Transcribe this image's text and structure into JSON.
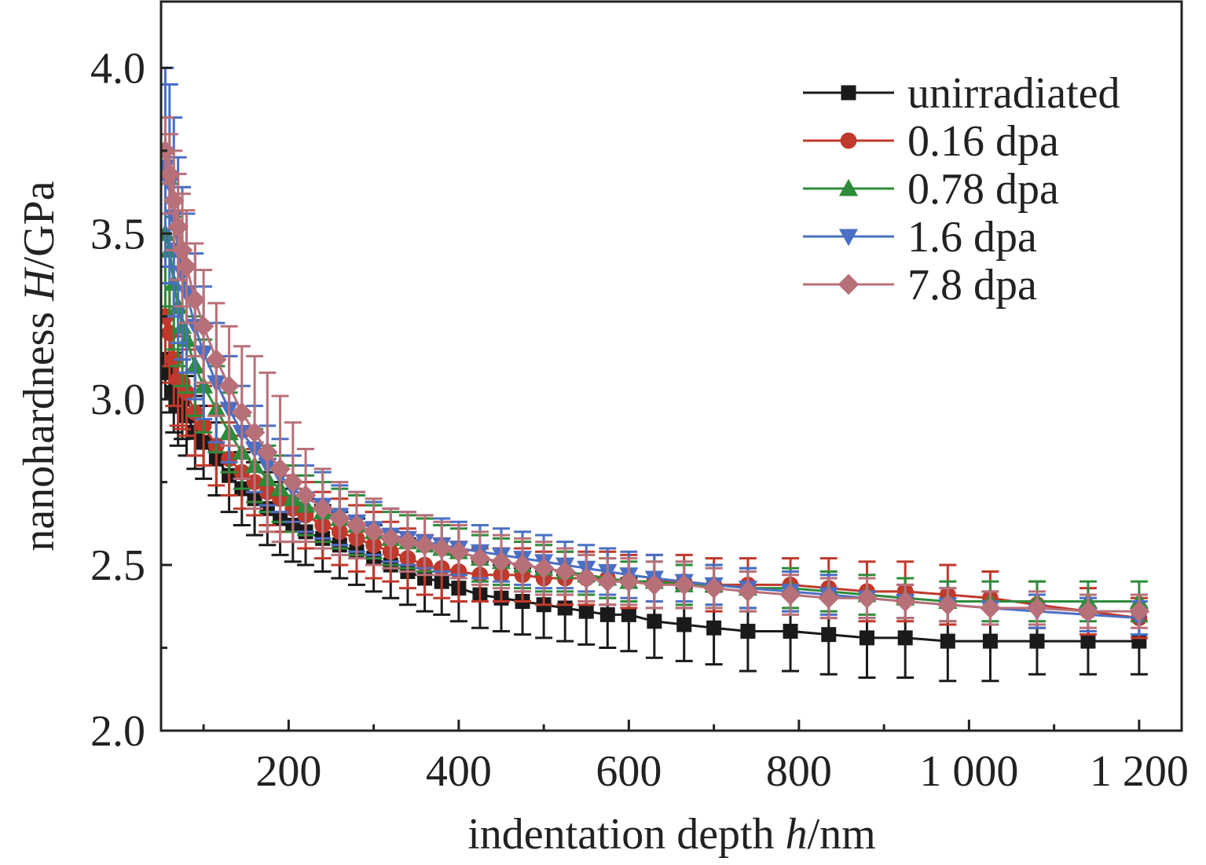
{
  "chart_data": {
    "type": "line",
    "title": "",
    "xlabel": {
      "prefix": "indentation depth ",
      "variable": "h",
      "unit": "/nm"
    },
    "ylabel": {
      "prefix": "nanohardness ",
      "variable": "H",
      "unit": "/GPa"
    },
    "xlim": [
      50,
      1250
    ],
    "ylim": [
      2.0,
      4.2
    ],
    "x_ticks": [
      200,
      400,
      600,
      800,
      1000,
      1200
    ],
    "x_tick_labels": [
      "200",
      "400",
      "600",
      "800",
      "1 000",
      "1 200"
    ],
    "y_ticks": [
      2.0,
      2.5,
      3.0,
      3.5,
      4.0
    ],
    "y_tick_labels": [
      "2.0",
      "2.5",
      "3.0",
      "3.5",
      "4.0"
    ],
    "legend_position": "top-right",
    "grid": false,
    "x": [
      55,
      60,
      65,
      70,
      75,
      80,
      90,
      100,
      115,
      130,
      145,
      160,
      175,
      190,
      205,
      220,
      240,
      260,
      280,
      300,
      320,
      340,
      360,
      380,
      400,
      425,
      450,
      475,
      500,
      525,
      550,
      575,
      600,
      630,
      665,
      700,
      740,
      790,
      835,
      880,
      925,
      975,
      1025,
      1080,
      1140,
      1200
    ],
    "series": [
      {
        "name": "unirradiated",
        "color": "#1a1a1a",
        "marker": "square",
        "values": [
          3.12,
          3.08,
          3.02,
          2.98,
          3.0,
          2.95,
          2.9,
          2.87,
          2.82,
          2.77,
          2.73,
          2.7,
          2.67,
          2.64,
          2.62,
          2.6,
          2.58,
          2.56,
          2.54,
          2.52,
          2.5,
          2.48,
          2.46,
          2.45,
          2.43,
          2.41,
          2.4,
          2.39,
          2.38,
          2.37,
          2.36,
          2.35,
          2.35,
          2.33,
          2.32,
          2.31,
          2.3,
          2.3,
          2.29,
          2.28,
          2.28,
          2.27,
          2.27,
          2.27,
          2.27,
          2.27
        ],
        "errors": [
          0.12,
          0.12,
          0.12,
          0.12,
          0.12,
          0.12,
          0.11,
          0.11,
          0.11,
          0.11,
          0.11,
          0.11,
          0.11,
          0.11,
          0.11,
          0.1,
          0.1,
          0.1,
          0.1,
          0.1,
          0.1,
          0.1,
          0.1,
          0.1,
          0.1,
          0.1,
          0.1,
          0.1,
          0.1,
          0.1,
          0.1,
          0.1,
          0.11,
          0.11,
          0.11,
          0.11,
          0.12,
          0.12,
          0.12,
          0.12,
          0.12,
          0.12,
          0.12,
          0.1,
          0.1,
          0.1
        ]
      },
      {
        "name": "0.16 dpa",
        "color": "#c0392b",
        "marker": "circle",
        "values": [
          3.25,
          3.2,
          3.12,
          3.06,
          3.05,
          3.02,
          2.96,
          2.92,
          2.86,
          2.82,
          2.78,
          2.75,
          2.72,
          2.7,
          2.67,
          2.65,
          2.62,
          2.6,
          2.58,
          2.56,
          2.54,
          2.52,
          2.5,
          2.49,
          2.48,
          2.47,
          2.47,
          2.47,
          2.46,
          2.46,
          2.46,
          2.46,
          2.45,
          2.45,
          2.45,
          2.44,
          2.44,
          2.44,
          2.43,
          2.42,
          2.42,
          2.41,
          2.4,
          2.38,
          2.36,
          2.34
        ],
        "errors": [
          0.15,
          0.15,
          0.14,
          0.14,
          0.14,
          0.13,
          0.13,
          0.12,
          0.12,
          0.11,
          0.11,
          0.1,
          0.1,
          0.1,
          0.1,
          0.1,
          0.1,
          0.1,
          0.1,
          0.1,
          0.09,
          0.09,
          0.09,
          0.09,
          0.09,
          0.08,
          0.08,
          0.08,
          0.08,
          0.08,
          0.08,
          0.08,
          0.08,
          0.08,
          0.08,
          0.08,
          0.08,
          0.08,
          0.09,
          0.09,
          0.09,
          0.09,
          0.08,
          0.07,
          0.07,
          0.06
        ]
      },
      {
        "name": "0.78 dpa",
        "color": "#2e8b3a",
        "marker": "triangle-up",
        "values": [
          3.5,
          3.45,
          3.35,
          3.28,
          3.22,
          3.18,
          3.1,
          3.04,
          2.97,
          2.9,
          2.84,
          2.8,
          2.76,
          2.73,
          2.7,
          2.68,
          2.66,
          2.64,
          2.62,
          2.6,
          2.58,
          2.57,
          2.56,
          2.55,
          2.54,
          2.52,
          2.51,
          2.5,
          2.49,
          2.48,
          2.47,
          2.46,
          2.45,
          2.45,
          2.44,
          2.44,
          2.43,
          2.43,
          2.42,
          2.41,
          2.4,
          2.39,
          2.39,
          2.39,
          2.39,
          2.39
        ],
        "errors": [
          0.22,
          0.2,
          0.2,
          0.18,
          0.18,
          0.16,
          0.15,
          0.14,
          0.13,
          0.12,
          0.11,
          0.11,
          0.1,
          0.1,
          0.1,
          0.09,
          0.09,
          0.09,
          0.09,
          0.08,
          0.08,
          0.08,
          0.08,
          0.07,
          0.07,
          0.07,
          0.07,
          0.07,
          0.07,
          0.06,
          0.06,
          0.06,
          0.06,
          0.06,
          0.06,
          0.06,
          0.06,
          0.06,
          0.06,
          0.06,
          0.06,
          0.06,
          0.06,
          0.06,
          0.06,
          0.06
        ]
      },
      {
        "name": "1.6 dpa",
        "color": "#4a6fc4",
        "marker": "triangle-down",
        "values": [
          3.7,
          3.65,
          3.55,
          3.45,
          3.38,
          3.32,
          3.22,
          3.14,
          3.05,
          2.97,
          2.9,
          2.85,
          2.8,
          2.77,
          2.73,
          2.7,
          2.68,
          2.65,
          2.63,
          2.61,
          2.59,
          2.58,
          2.57,
          2.56,
          2.55,
          2.54,
          2.53,
          2.52,
          2.51,
          2.5,
          2.49,
          2.48,
          2.47,
          2.46,
          2.45,
          2.44,
          2.43,
          2.42,
          2.41,
          2.4,
          2.39,
          2.38,
          2.37,
          2.36,
          2.35,
          2.34
        ],
        "errors": [
          0.3,
          0.3,
          0.3,
          0.28,
          0.26,
          0.24,
          0.22,
          0.2,
          0.18,
          0.16,
          0.14,
          0.13,
          0.12,
          0.11,
          0.1,
          0.1,
          0.1,
          0.09,
          0.09,
          0.08,
          0.08,
          0.08,
          0.08,
          0.08,
          0.08,
          0.08,
          0.08,
          0.08,
          0.08,
          0.07,
          0.07,
          0.07,
          0.07,
          0.07,
          0.06,
          0.06,
          0.06,
          0.06,
          0.06,
          0.06,
          0.05,
          0.05,
          0.05,
          0.05,
          0.05,
          0.05
        ]
      },
      {
        "name": "7.8 dpa",
        "color": "#b87078",
        "marker": "diamond",
        "values": [
          3.75,
          3.68,
          3.6,
          3.52,
          3.45,
          3.4,
          3.3,
          3.22,
          3.12,
          3.04,
          2.96,
          2.9,
          2.84,
          2.79,
          2.75,
          2.71,
          2.67,
          2.64,
          2.62,
          2.6,
          2.58,
          2.57,
          2.56,
          2.55,
          2.54,
          2.52,
          2.51,
          2.5,
          2.49,
          2.48,
          2.46,
          2.45,
          2.45,
          2.44,
          2.44,
          2.43,
          2.42,
          2.41,
          2.4,
          2.4,
          2.39,
          2.38,
          2.37,
          2.37,
          2.36,
          2.36
        ],
        "errors": [
          0.1,
          0.12,
          0.15,
          0.16,
          0.17,
          0.17,
          0.17,
          0.17,
          0.17,
          0.18,
          0.2,
          0.23,
          0.24,
          0.22,
          0.18,
          0.14,
          0.12,
          0.11,
          0.1,
          0.1,
          0.09,
          0.09,
          0.09,
          0.08,
          0.08,
          0.08,
          0.08,
          0.08,
          0.08,
          0.07,
          0.07,
          0.07,
          0.07,
          0.07,
          0.07,
          0.06,
          0.06,
          0.06,
          0.06,
          0.06,
          0.05,
          0.05,
          0.05,
          0.05,
          0.05,
          0.05
        ]
      }
    ]
  }
}
